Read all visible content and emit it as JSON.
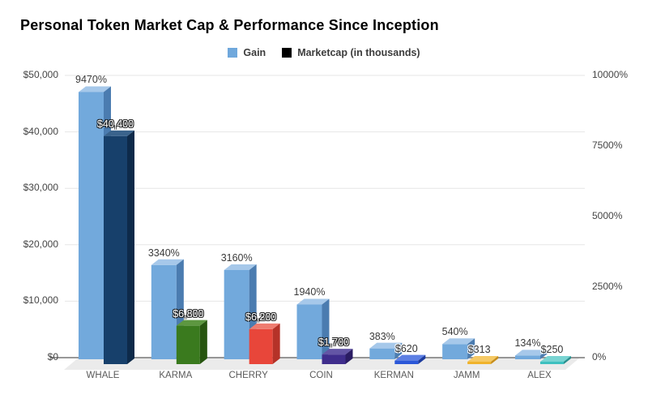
{
  "title": "Personal Token Market Cap & Performance Since Inception",
  "legend": [
    {
      "label": "Gain",
      "color": "#6fa8dc"
    },
    {
      "label": "Marketcap (in thousands)",
      "color": "#000000"
    }
  ],
  "chart_data": {
    "type": "bar",
    "style": "3d-column",
    "title": "Personal Token Market Cap & Performance Since Inception",
    "categories": [
      "WHALE",
      "KARMA",
      "CHERRY",
      "COIN",
      "KERMAN",
      "JAMM",
      "ALEX"
    ],
    "series": [
      {
        "name": "Gain",
        "axis": "right",
        "unit": "%",
        "values": [
          9470,
          3340,
          3160,
          1940,
          383,
          540,
          134
        ],
        "labels": [
          "9470%",
          "3340%",
          "3160%",
          "1940%",
          "383%",
          "540%",
          "134%"
        ]
      },
      {
        "name": "Marketcap (in thousands)",
        "axis": "left",
        "unit": "$ thousands",
        "values": [
          40400,
          6800,
          6200,
          1700,
          620,
          313,
          250
        ],
        "labels": [
          "$40,400",
          "$6,800",
          "$6,200",
          "$1,700",
          "$620",
          "$313",
          "$250"
        ]
      }
    ],
    "left_axis": {
      "min": 0,
      "max": 50000,
      "ticks": [
        "$0",
        "$10,000",
        "$20,000",
        "$30,000",
        "$40,000",
        "$50,000"
      ]
    },
    "right_axis": {
      "min": 0,
      "max": 10000,
      "ticks": [
        "0%",
        "2500%",
        "5000%",
        "7500%",
        "10000%"
      ]
    },
    "grid": true,
    "legend_position": "top-center",
    "colors": {
      "gain": {
        "front": "#72a9dc",
        "top": "#a6c8ea",
        "side": "#4b7cb0"
      },
      "marketcap": [
        {
          "front": "#17406b",
          "top": "#3a638c",
          "side": "#0d2a4a"
        },
        {
          "front": "#3a7a1e",
          "top": "#5d9740",
          "side": "#275510"
        },
        {
          "front": "#e8463a",
          "top": "#ef7c70",
          "side": "#b53228"
        },
        {
          "front": "#3f2d8c",
          "top": "#6355a5",
          "side": "#2a1c63"
        },
        {
          "front": "#2b57d8",
          "top": "#5d7fe4",
          "side": "#1c3b9e"
        },
        {
          "front": "#f0b32c",
          "top": "#f5c965",
          "side": "#c68d1b"
        },
        {
          "front": "#3ec0bf",
          "top": "#79d4d2",
          "side": "#2b908f"
        }
      ],
      "gridline": "#e6e6e6",
      "baseline": "#777777",
      "floor": "#ebebeb"
    }
  }
}
